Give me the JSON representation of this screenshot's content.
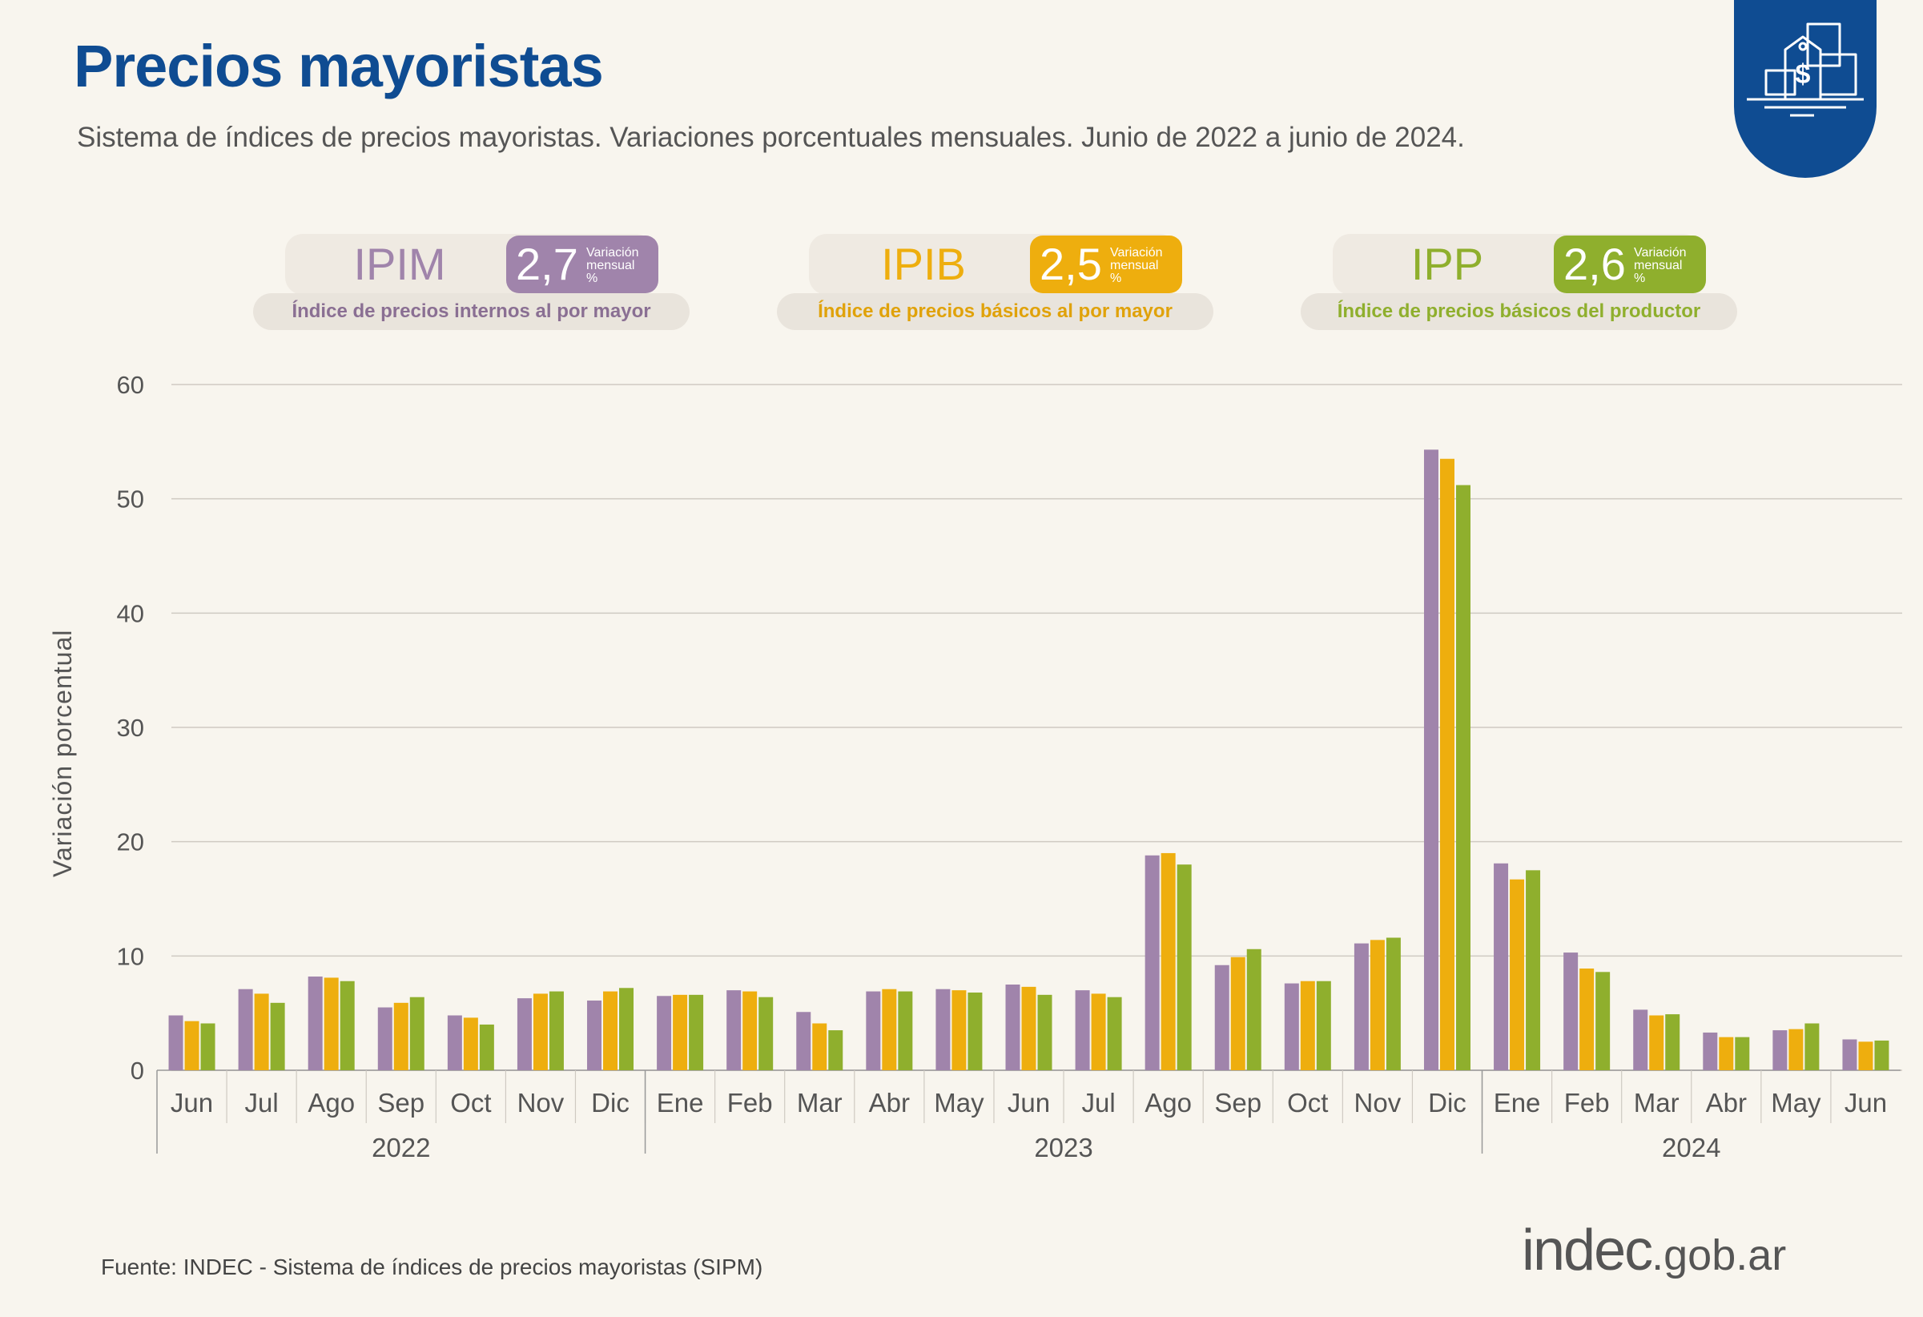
{
  "header": {
    "title": "Precios mayoristas",
    "subtitle": "Sistema de índices de precios mayoristas. Variaciones porcentuales mensuales. Junio de 2022 a junio de 2024."
  },
  "corner_icon": "price-tag-boxes-icon",
  "indices": [
    {
      "abbr": "IPIM",
      "value": "2,7",
      "unit_line1": "Variación",
      "unit_line2": "mensual",
      "unit_line3": "%",
      "description": "Índice de precios internos al por mayor",
      "color": "#a084ab"
    },
    {
      "abbr": "IPIB",
      "value": "2,5",
      "unit_line1": "Variación",
      "unit_line2": "mensual",
      "unit_line3": "%",
      "description": "Índice de precios básicos al por mayor",
      "color": "#eeae0e"
    },
    {
      "abbr": "IPP",
      "value": "2,6",
      "unit_line1": "Variación",
      "unit_line2": "mensual",
      "unit_line3": "%",
      "description": "Índice de precios básicos del productor",
      "color": "#8faf2d"
    }
  ],
  "chart_data": {
    "type": "bar",
    "title": "",
    "xlabel": "",
    "ylabel": "Variación porcentual",
    "ylim": [
      0,
      60
    ],
    "yticks": [
      0,
      10,
      20,
      30,
      40,
      50,
      60
    ],
    "grid": true,
    "categories": [
      "Jun",
      "Jul",
      "Ago",
      "Sep",
      "Oct",
      "Nov",
      "Dic",
      "Ene",
      "Feb",
      "Mar",
      "Abr",
      "May",
      "Jun",
      "Jul",
      "Ago",
      "Sep",
      "Oct",
      "Nov",
      "Dic",
      "Ene",
      "Feb",
      "Mar",
      "Abr",
      "May",
      "Jun"
    ],
    "year_groups": [
      {
        "label": "2022",
        "start": 0,
        "end": 6
      },
      {
        "label": "2023",
        "start": 7,
        "end": 18
      },
      {
        "label": "2024",
        "start": 19,
        "end": 24
      }
    ],
    "series": [
      {
        "name": "IPIM",
        "color": "#a084ab",
        "values": [
          4.8,
          7.1,
          8.2,
          5.5,
          4.8,
          6.3,
          6.1,
          6.5,
          7.0,
          5.1,
          6.9,
          7.1,
          7.5,
          7.0,
          18.8,
          9.2,
          7.6,
          11.1,
          54.3,
          18.1,
          10.3,
          5.3,
          3.3,
          3.5,
          2.7
        ]
      },
      {
        "name": "IPIB",
        "color": "#eeae0e",
        "values": [
          4.3,
          6.7,
          8.1,
          5.9,
          4.6,
          6.7,
          6.9,
          6.6,
          6.9,
          4.1,
          7.1,
          7.0,
          7.3,
          6.7,
          19.0,
          9.9,
          7.8,
          11.4,
          53.5,
          16.7,
          8.9,
          4.8,
          2.9,
          3.6,
          2.5
        ]
      },
      {
        "name": "IPP",
        "color": "#8faf2d",
        "values": [
          4.1,
          5.9,
          7.8,
          6.4,
          4.0,
          6.9,
          7.2,
          6.6,
          6.4,
          3.5,
          6.9,
          6.8,
          6.6,
          6.4,
          18.0,
          10.6,
          7.8,
          11.6,
          51.2,
          17.5,
          8.6,
          4.9,
          2.9,
          4.1,
          2.6
        ]
      }
    ]
  },
  "footer": {
    "source": "Fuente: INDEC - Sistema de índices de precios mayoristas (SIPM)",
    "logo_main": "indec",
    "logo_domain": ".gob.ar"
  }
}
